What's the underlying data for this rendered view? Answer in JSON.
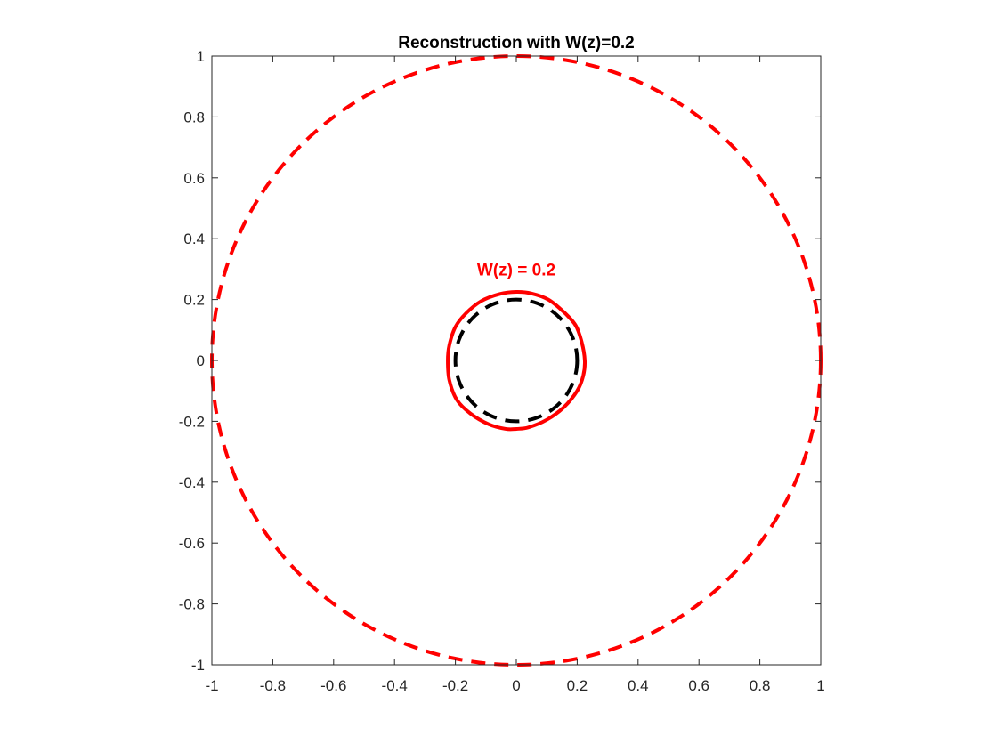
{
  "chart_data": {
    "type": "line",
    "title": "Reconstruction with W(z)=0.2",
    "xlabel": "",
    "ylabel": "",
    "xlim": [
      -1,
      1
    ],
    "ylim": [
      -1,
      1
    ],
    "xticks": [
      -1,
      -0.8,
      -0.6,
      -0.4,
      -0.2,
      0,
      0.2,
      0.4,
      0.6,
      0.8,
      1
    ],
    "yticks": [
      -1,
      -0.8,
      -0.6,
      -0.4,
      -0.2,
      0,
      0.2,
      0.4,
      0.6,
      0.8,
      1
    ],
    "xtick_labels": [
      "-1",
      "-0.8",
      "-0.6",
      "-0.4",
      "-0.2",
      "0",
      "0.2",
      "0.4",
      "0.6",
      "0.8",
      "1"
    ],
    "ytick_labels": [
      "-1",
      "-0.8",
      "-0.6",
      "-0.4",
      "-0.2",
      "0",
      "0.2",
      "0.4",
      "0.6",
      "0.8",
      "1"
    ],
    "grid": false,
    "series": [
      {
        "kind": "circle",
        "center": [
          0,
          0
        ],
        "radius": 1.0,
        "color": "#ff0000",
        "style": "dashed"
      },
      {
        "kind": "circle",
        "center": [
          0,
          0
        ],
        "radius": 0.2,
        "color": "#000000",
        "style": "dashed"
      },
      {
        "kind": "closed-curve",
        "color": "#ff0000",
        "style": "solid",
        "x": [
          0.225,
          0.215,
          0.195,
          0.155,
          0.105,
          0.05,
          0.0,
          -0.055,
          -0.115,
          -0.165,
          -0.2,
          -0.22,
          -0.225,
          -0.22,
          -0.195,
          -0.15,
          -0.09,
          -0.035,
          0.0,
          0.04,
          0.1,
          0.155,
          0.2,
          0.22
        ],
        "y": [
          0.0,
          0.06,
          0.115,
          0.16,
          0.2,
          0.22,
          0.225,
          0.218,
          0.195,
          0.155,
          0.11,
          0.05,
          0.0,
          -0.065,
          -0.13,
          -0.175,
          -0.21,
          -0.225,
          -0.225,
          -0.22,
          -0.195,
          -0.155,
          -0.1,
          -0.05
        ]
      }
    ],
    "annotations": [
      {
        "text": "W(z) = 0.2",
        "x": 0.0,
        "y": 0.3,
        "color": "#ff0000"
      }
    ]
  }
}
